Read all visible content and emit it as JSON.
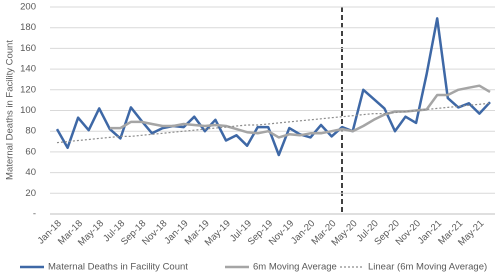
{
  "chart_data": {
    "type": "line",
    "y_label": "Maternal Deaths in Facility Count",
    "categories": [
      "Jan-18",
      null,
      "Mar-18",
      null,
      "May-18",
      null,
      "Jul-18",
      null,
      "Sep-18",
      null,
      "Nov-18",
      null,
      "Jan-19",
      null,
      "Mar-19",
      null,
      "May-19",
      null,
      "Jul-19",
      null,
      "Sep-19",
      null,
      "Nov-19",
      null,
      "Jan-20",
      null,
      "Mar-20",
      null,
      "May-20",
      null,
      "Jul-20",
      null,
      "Sep-20",
      null,
      "Nov-20",
      null,
      "Jan-21",
      null,
      "Mar-21",
      null,
      "May-21",
      null
    ],
    "series": [
      {
        "name": "Maternal Deaths in Facility Count",
        "color": "#3e68a6",
        "style": "solid",
        "values": [
          82,
          64,
          93,
          81,
          102,
          82,
          73,
          103,
          90,
          78,
          83,
          85,
          84,
          94,
          80,
          91,
          71,
          76,
          66,
          84,
          84,
          57,
          83,
          77,
          74,
          86,
          75,
          84,
          80,
          120,
          111,
          102,
          80,
          94,
          88,
          135,
          189,
          112,
          103,
          107,
          97,
          108
        ]
      },
      {
        "name": "6m Moving Average",
        "color": "#a5a5a5",
        "style": "solid",
        "values": [
          null,
          null,
          null,
          null,
          null,
          83,
          83,
          89,
          89,
          87,
          85,
          85,
          87,
          86,
          85,
          86,
          85,
          82,
          79,
          78,
          80,
          74,
          77,
          76,
          78,
          78,
          80,
          82,
          80,
          85,
          91,
          96,
          99,
          99,
          100,
          101,
          115,
          115,
          120,
          122,
          124,
          118
        ]
      },
      {
        "name": "Linear (6m Moving Average)",
        "color": "#8c8c8c",
        "style": "dotted",
        "values": [
          69,
          70,
          71,
          72,
          73,
          74,
          75,
          75,
          76,
          77,
          78,
          79,
          80,
          81,
          82,
          83,
          84,
          85,
          86,
          86,
          87,
          88,
          89,
          90,
          91,
          92,
          93,
          94,
          95,
          96,
          97,
          97,
          98,
          99,
          100,
          101,
          102,
          103,
          104,
          105,
          106,
          107
        ]
      }
    ],
    "ylim": [
      0,
      200
    ],
    "yticks": [
      {
        "value": 0,
        "label": "-"
      },
      20,
      40,
      60,
      80,
      100,
      120,
      140,
      160,
      180,
      200
    ],
    "grid": true
  }
}
